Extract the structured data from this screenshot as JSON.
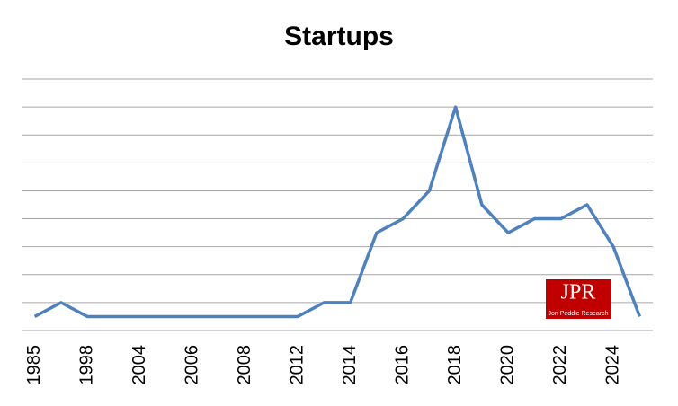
{
  "chart_data": {
    "type": "line",
    "title": "Startups",
    "categories": [
      "1985",
      null,
      "1998",
      null,
      "2004",
      null,
      "2006",
      null,
      "2008",
      null,
      "2012",
      null,
      "2014",
      null,
      "2016",
      null,
      "2018",
      null,
      "2020",
      null,
      "2022",
      null,
      "2024",
      null
    ],
    "series": [
      {
        "name": "Startups",
        "color": "#4f81bd",
        "values": [
          1,
          2,
          1,
          1,
          1,
          1,
          1,
          1,
          1,
          1,
          1,
          2,
          2,
          7,
          8,
          10,
          16,
          9,
          7,
          8,
          8,
          9,
          6,
          1
        ]
      }
    ],
    "ylim": [
      0,
      18
    ],
    "yticks": [
      0,
      2,
      4,
      6,
      8,
      10,
      12,
      14,
      16,
      18
    ],
    "grid": true,
    "legend": false
  },
  "logo": {
    "text": "JPR",
    "subtext": "Jon Peddie Research"
  }
}
